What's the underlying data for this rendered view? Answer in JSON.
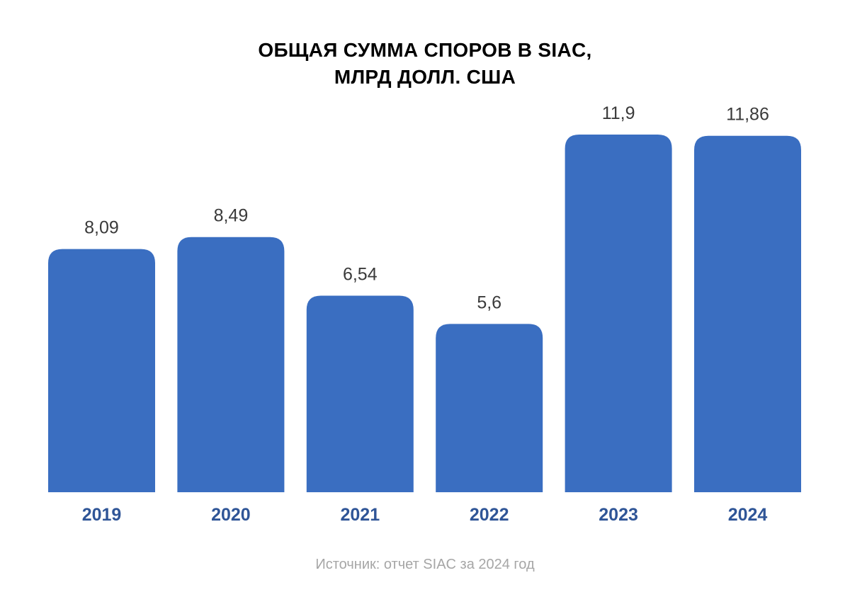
{
  "chart_data": {
    "type": "bar",
    "title_lines": [
      "ОБЩАЯ СУММА СПОРОВ В SIAC,",
      "МЛРД ДОЛЛ. США"
    ],
    "categories": [
      "2019",
      "2020",
      "2021",
      "2022",
      "2023",
      "2024"
    ],
    "values": [
      8.09,
      8.49,
      6.54,
      5.6,
      11.9,
      11.86
    ],
    "value_labels": [
      "8,09",
      "8,49",
      "6,54",
      "5,6",
      "11,9",
      "11,86"
    ],
    "ylim": [
      0,
      11.9
    ],
    "grid": false,
    "legend": "none",
    "colors": {
      "bar": "#3A6EC1",
      "category_text": "#2F5597",
      "value_text": "#3A3A3A",
      "title_text": "#000000",
      "source_text": "#A6A6A6"
    }
  },
  "source": "Источник: отчет SIAC за 2024 год"
}
